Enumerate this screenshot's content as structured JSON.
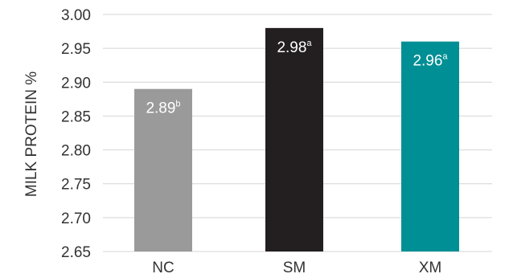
{
  "chart_data": {
    "type": "bar",
    "categories": [
      "NC",
      "SM",
      "XM"
    ],
    "values": [
      2.89,
      2.98,
      2.96
    ],
    "value_labels": [
      "2.89",
      "2.98",
      "2.96"
    ],
    "superscripts": [
      "b",
      "a",
      "a"
    ],
    "colors": [
      "#9a9a9a",
      "#231f20",
      "#008f94"
    ],
    "title": "",
    "xlabel": "",
    "ylabel": "MILK PROTEIN %",
    "ylim": [
      2.65,
      3.0
    ],
    "yticks": [
      "2.65",
      "2.70",
      "2.75",
      "2.80",
      "2.85",
      "2.90",
      "2.95",
      "3.00"
    ],
    "grid": true
  }
}
